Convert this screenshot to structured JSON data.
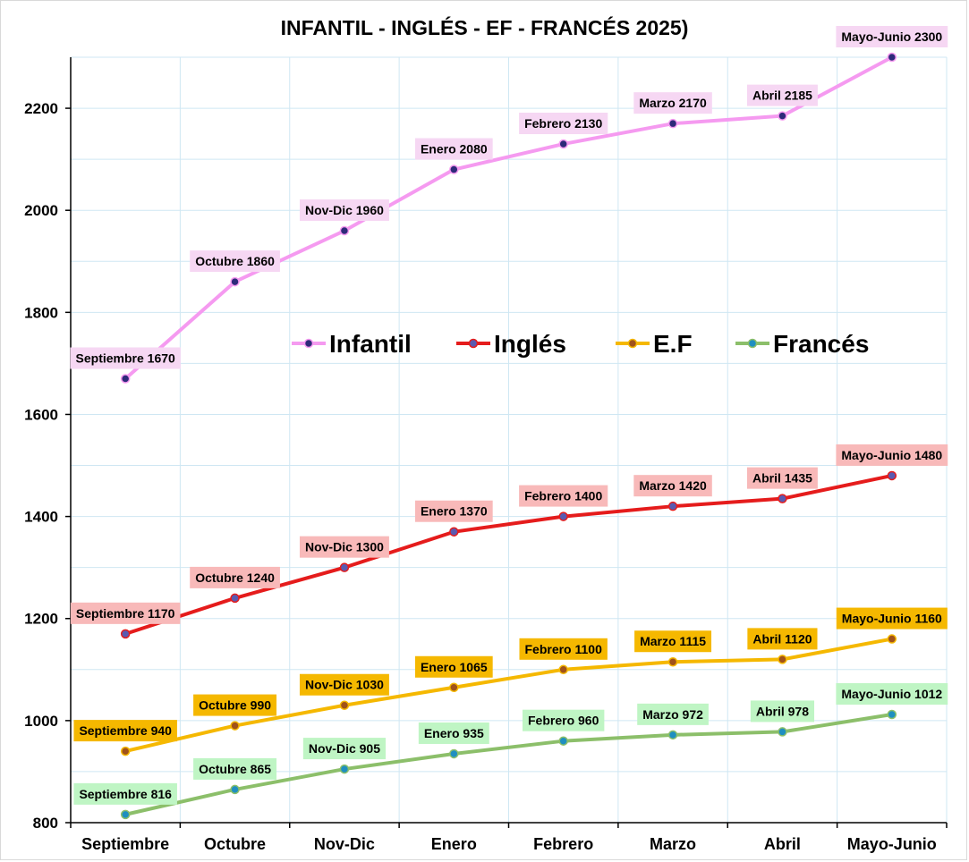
{
  "chart_data": {
    "type": "line",
    "title": "INFANTIL - INGLÉS - EF - FRANCÉS 2025)",
    "xlabel": "",
    "ylabel": "",
    "ylim": [
      800,
      2300
    ],
    "yticks": [
      800,
      1000,
      1200,
      1400,
      1600,
      1800,
      2000,
      2200
    ],
    "grid": true,
    "legend_position": "center",
    "categories": [
      "Septiembre",
      "Octubre",
      "Nov-Dic",
      "Enero",
      "Febrero",
      "Marzo",
      "Abril",
      "Mayo-Junio"
    ],
    "series": [
      {
        "name": "Infantil",
        "color": "#f59af0",
        "marker": "#2e2a7a",
        "label_bg": "#f6d7f3",
        "values": [
          1670,
          1860,
          1960,
          2080,
          2130,
          2170,
          2185,
          2300
        ],
        "labels": [
          "Septiembre 1670",
          "Octubre 1860",
          "Nov-Dic 1960",
          "Enero 2080",
          "Febrero 2130",
          "Marzo 2170",
          "Abril 2185",
          "Mayo-Junio 2300"
        ]
      },
      {
        "name": "Inglés",
        "color": "#e51c1c",
        "marker": "#5a5ab0",
        "label_bg": "#f8b9b9",
        "values": [
          1170,
          1240,
          1300,
          1370,
          1400,
          1420,
          1435,
          1480
        ],
        "labels": [
          "Septiembre 1170",
          "Octubre 1240",
          "Nov-Dic 1300",
          "Enero 1370",
          "Febrero 1400",
          "Marzo 1420",
          "Abril 1435",
          "Mayo-Junio 1480"
        ]
      },
      {
        "name": "E.F",
        "color": "#f5b800",
        "marker": "#a0521a",
        "label_bg": "#f5b800",
        "values": [
          940,
          990,
          1030,
          1065,
          1100,
          1115,
          1120,
          1160
        ],
        "labels": [
          "Septiembre 940",
          "Octubre 990",
          "Nov-Dic 1030",
          "Enero 1065",
          "Febrero 1100",
          "Marzo 1115",
          "Abril 1120",
          "Mayo-Junio 1160"
        ]
      },
      {
        "name": "Francés",
        "color": "#8cbf6a",
        "marker": "#1f8fc0",
        "label_bg": "#bff5c4",
        "values": [
          816,
          865,
          905,
          935,
          960,
          972,
          978,
          1012
        ],
        "labels": [
          "Septiembre 816",
          "Octubre 865",
          "Nov-Dic 905",
          "Enero 935",
          "Febrero 960",
          "Marzo 972",
          "Abril 978",
          "Mayo-Junio 1012"
        ]
      }
    ]
  }
}
